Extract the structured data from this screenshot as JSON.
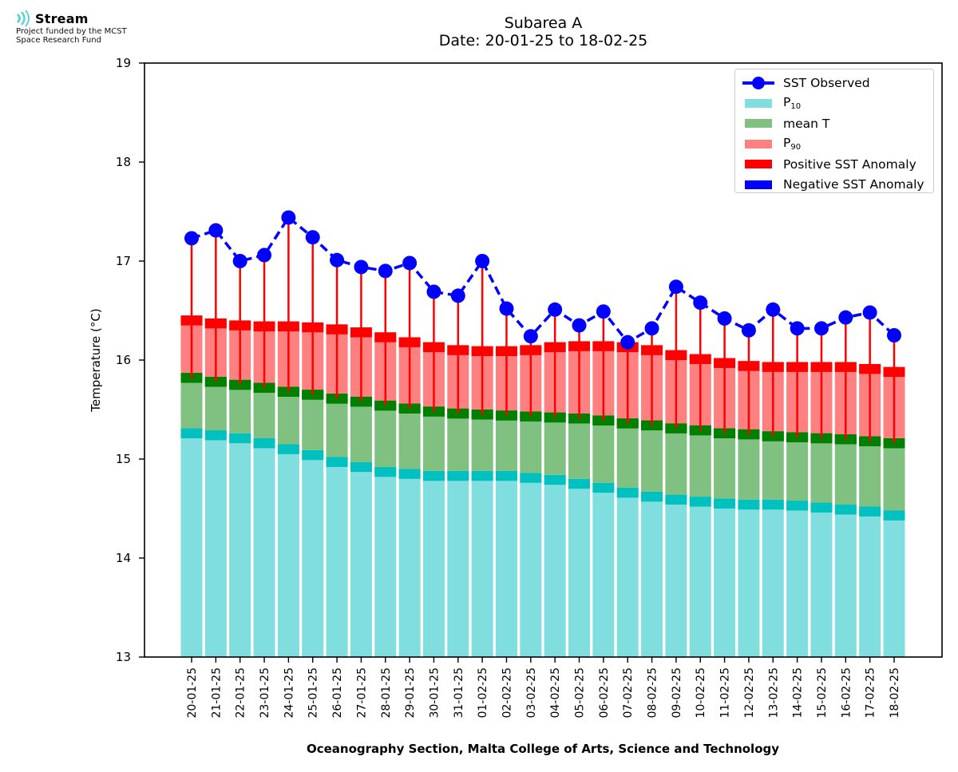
{
  "logo": {
    "name": "Stream",
    "subtitle_line1": "Project funded by the MCST",
    "subtitle_line2": "Space Research Fund"
  },
  "colors": {
    "p10_fill": "#80deDe",
    "p10_band": "#00c0c0",
    "mean_fill": "#80c080",
    "mean_band": "#008000",
    "p90_fill": "#ff8080",
    "p90_band": "#ff0000",
    "observed": "#0000ff",
    "positive_anomaly": "#ff0000",
    "negative_anomaly": "#0000ff"
  },
  "chart_data": {
    "type": "bar",
    "title": "Subarea A",
    "subtitle": "Date: 20-01-25 to 18-02-25",
    "xlabel": "Oceanography Section, Malta College of Arts, Science and Technology",
    "ylabel": "Temperature (°C)",
    "ylim": [
      13,
      19
    ],
    "yticks": [
      13,
      14,
      15,
      16,
      17,
      18,
      19
    ],
    "grid": false,
    "legend_position": "top-right",
    "legend": [
      {
        "key": "observed",
        "label": "SST Observed",
        "sub": ""
      },
      {
        "key": "p10",
        "label": "P",
        "sub": "10"
      },
      {
        "key": "mean",
        "label": "mean T",
        "sub": ""
      },
      {
        "key": "p90",
        "label": "P",
        "sub": "90"
      },
      {
        "key": "pos",
        "label": "Positive SST Anomaly",
        "sub": ""
      },
      {
        "key": "neg",
        "label": "Negative SST Anomaly",
        "sub": ""
      }
    ],
    "categories": [
      "20-01-25",
      "21-01-25",
      "22-01-25",
      "23-01-25",
      "24-01-25",
      "25-01-25",
      "26-01-25",
      "27-01-25",
      "28-01-25",
      "29-01-25",
      "30-01-25",
      "31-01-25",
      "01-02-25",
      "02-02-25",
      "03-02-25",
      "04-02-25",
      "05-02-25",
      "06-02-25",
      "07-02-25",
      "08-02-25",
      "09-02-25",
      "10-02-25",
      "11-02-25",
      "12-02-25",
      "13-02-25",
      "14-02-25",
      "15-02-25",
      "16-02-25",
      "17-02-25",
      "18-02-25"
    ],
    "series": [
      {
        "name": "P10",
        "values": [
          15.31,
          15.29,
          15.26,
          15.21,
          15.15,
          15.09,
          15.02,
          14.97,
          14.92,
          14.9,
          14.88,
          14.88,
          14.88,
          14.88,
          14.86,
          14.84,
          14.8,
          14.76,
          14.71,
          14.67,
          14.64,
          14.62,
          14.6,
          14.59,
          14.59,
          14.58,
          14.56,
          14.54,
          14.52,
          14.48
        ]
      },
      {
        "name": "mean T",
        "values": [
          15.87,
          15.83,
          15.8,
          15.77,
          15.73,
          15.7,
          15.66,
          15.63,
          15.59,
          15.56,
          15.53,
          15.51,
          15.5,
          15.49,
          15.48,
          15.47,
          15.46,
          15.44,
          15.41,
          15.39,
          15.36,
          15.34,
          15.31,
          15.3,
          15.28,
          15.27,
          15.26,
          15.25,
          15.23,
          15.21
        ]
      },
      {
        "name": "P90",
        "values": [
          16.45,
          16.42,
          16.4,
          16.39,
          16.39,
          16.38,
          16.36,
          16.33,
          16.28,
          16.23,
          16.18,
          16.15,
          16.14,
          16.14,
          16.15,
          16.18,
          16.19,
          16.19,
          16.18,
          16.15,
          16.1,
          16.06,
          16.02,
          15.99,
          15.98,
          15.98,
          15.98,
          15.98,
          15.96,
          15.93
        ]
      },
      {
        "name": "SST Observed",
        "values": [
          17.23,
          17.31,
          17.0,
          17.06,
          17.44,
          17.24,
          17.01,
          16.94,
          16.9,
          16.98,
          16.69,
          16.65,
          17.0,
          16.52,
          16.24,
          16.51,
          16.35,
          16.49,
          16.18,
          16.32,
          16.74,
          16.58,
          16.42,
          16.3,
          16.51,
          16.32,
          16.32,
          16.43,
          16.48,
          16.25
        ]
      }
    ],
    "band_thickness_degC": 0.1
  }
}
